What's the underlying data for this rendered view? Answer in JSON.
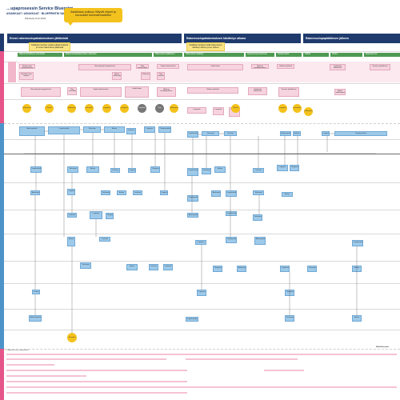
{
  "header": {
    "title": "…upaprosessin Service Blueprint",
    "subtitle": "ASIAKKAAT / ASIAKKAAT · BLUEPRINTIN VAIHEET / RAMPI",
    "date": "Päivitetty 8.12.2023"
  },
  "callout": {
    "text": "Asiakkaan polkuun liittyvät ohjeet ja kuvaukset tukimateriaaleiksi"
  },
  "phases": [
    {
      "label": "Ennen rakennuslupahakemuksen jättämistä"
    },
    {
      "label": "Rakennuslupahakemuksen käsittelyn aikana"
    },
    {
      "label": "Rakennuslupapäätöksen jälkeen"
    }
  ],
  "subphases": [
    {
      "label": "Rakennushankkeen suunnittelu"
    },
    {
      "label": "Rakennuslupahakemuksen valmistelu"
    },
    {
      "label": "Hakemuksen jättäminen"
    },
    {
      "label": "Hakemuksen käsittely"
    },
    {
      "label": "Lausunnot ja kuulemiset"
    },
    {
      "label": "Täydennykset"
    },
    {
      "label": "Päätös"
    },
    {
      "label": "Aloitus"
    },
    {
      "label": "Rakentaminen"
    },
    {
      "label": "Loppukatselmus"
    }
  ],
  "notes": [
    {
      "text": "Asiakkaan tarvitsee saada selkeää ohjausta jo ennen hakemuksen jättämistä"
    },
    {
      "text": "Asiakkaan tarvitsee tietää hakemuksen käsittelyn tilanne ja sen vaiheet"
    }
  ],
  "customer_actions": [
    {
      "text": "Hakee tietoa rakentamisesta"
    },
    {
      "text": "Selvittää luvan tarpeen"
    },
    {
      "text": "Ottaa yhteyttä lupapalveluun"
    },
    {
      "text": "Tilaa suunnitelmat"
    },
    {
      "text": "Täyttää hakemuksen"
    },
    {
      "text": "Liittää liitteet"
    },
    {
      "text": "Maksaa käsittelymaksun"
    },
    {
      "text": "Odottaa päätöstä"
    },
    {
      "text": "Täydentää hakemusta"
    },
    {
      "text": "Tutustuu päätökseen"
    },
    {
      "text": "Hakee aloituslupaa"
    },
    {
      "text": "Rakentaa"
    },
    {
      "text": "Tilaa katselmuksen"
    }
  ],
  "touchpoints": [
    {
      "text": "Verkkosivut"
    },
    {
      "text": "Puhelin"
    },
    {
      "text": "Sähköposti"
    },
    {
      "text": "Neuvonta"
    },
    {
      "text": "Lupapiste"
    },
    {
      "text": "Lupapiste"
    },
    {
      "text": "Lupapiste"
    },
    {
      "text": "Kirje"
    },
    {
      "text": "Sähköposti"
    },
    {
      "text": "Puhelin"
    },
    {
      "text": "Lupapiste"
    },
    {
      "text": "Katselmus"
    }
  ],
  "pink_rows": [
    {
      "text": "Asiakaspalvelu"
    },
    {
      "text": "Lupakäsittelijä"
    },
    {
      "text": "Tarkastaja"
    },
    {
      "text": "Arkisto"
    },
    {
      "text": "Laskutus"
    },
    {
      "text": "Lupapiste"
    },
    {
      "text": "Tietojärjestelmät"
    }
  ],
  "bottom_labels": {
    "left": "Tukiprosessit ja -järjestelmät",
    "right": "Mahdollisuudet"
  }
}
